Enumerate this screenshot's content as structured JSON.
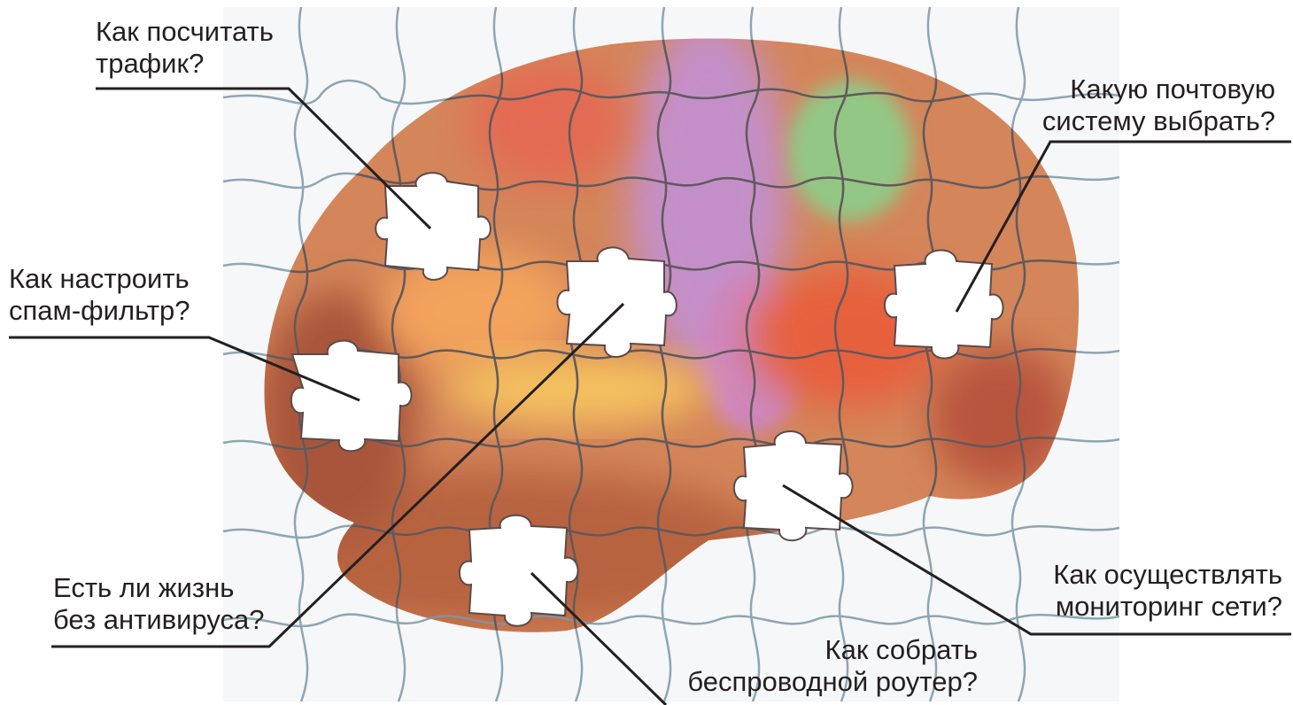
{
  "questions": [
    {
      "id": "traffic",
      "lines": [
        "Как посчитать",
        "трафик?"
      ]
    },
    {
      "id": "mail",
      "lines": [
        "Какую почтовую",
        "систему выбрать?"
      ]
    },
    {
      "id": "spam",
      "lines": [
        "Как настроить",
        "спам-фильтр?"
      ]
    },
    {
      "id": "antivirus",
      "lines": [
        "Есть ли жизнь",
        "без антивируса?"
      ]
    },
    {
      "id": "router",
      "lines": [
        "Как собрать",
        "беспроводной роутер?"
      ]
    },
    {
      "id": "monitor",
      "lines": [
        "Как осуществлять",
        "мониторинг сети?"
      ]
    }
  ],
  "colors": {
    "text": "#231f20",
    "leader_line": "#231f20",
    "puzzle_outline": "#7e97a6",
    "brain_base": "#d98a5e",
    "region_purple": "#c48fc9",
    "region_green": "#93c785",
    "region_orange": "#f3a35c",
    "region_yellow": "#f6c15e",
    "region_red": "#e4694f",
    "missing_piece": "#ffffff"
  }
}
